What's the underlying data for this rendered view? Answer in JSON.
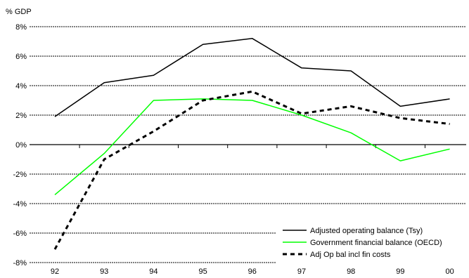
{
  "chart_data": {
    "type": "line",
    "title": "",
    "ylabel": "% GDP",
    "xlabel": "",
    "categories": [
      "92",
      "93",
      "94",
      "95",
      "96",
      "97",
      "98",
      "99",
      "00"
    ],
    "ylim": [
      -8,
      8
    ],
    "yticks": [
      -8,
      -6,
      -4,
      -2,
      0,
      2,
      4,
      6,
      8
    ],
    "ytick_labels": [
      "-8%",
      "-6%",
      "-4%",
      "-2%",
      "0%",
      "2%",
      "4%",
      "6%",
      "8%"
    ],
    "grid": "horizontal dashed",
    "legend_position": "bottom-right",
    "series": [
      {
        "name": "Adjusted operating balance (Tsy)",
        "color": "#000000",
        "style": "solid",
        "values": [
          1.9,
          4.2,
          4.7,
          6.8,
          7.2,
          5.2,
          5.0,
          2.6,
          3.1
        ]
      },
      {
        "name": "Government financial balance (OECD)",
        "color": "#00ff00",
        "style": "solid",
        "values": [
          -3.4,
          -0.6,
          3.0,
          3.1,
          3.0,
          2.0,
          0.8,
          -1.1,
          -0.3
        ]
      },
      {
        "name": "Adj Op bal incl fin costs",
        "color": "#000000",
        "style": "dashed",
        "values": [
          -7.1,
          -1.0,
          0.9,
          3.0,
          3.6,
          2.1,
          2.6,
          1.8,
          1.4
        ]
      }
    ]
  }
}
